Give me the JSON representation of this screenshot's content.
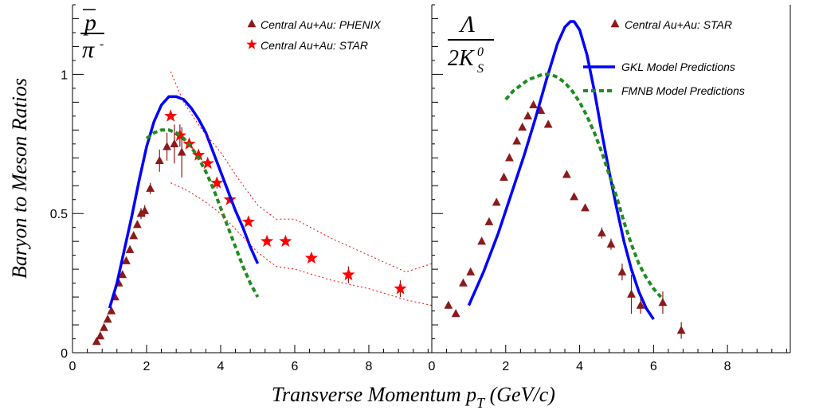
{
  "chart_data": {
    "type": "scatter",
    "xlabel": "Transverse Momentum p_T (GeV/c)",
    "xlabel_main": "Transverse Momentum p",
    "xlabel_sub": "T",
    "xlabel_unit": "(GeV/c)",
    "ylabel": "Baryon to Meson Ratios",
    "colors": {
      "exp": "#8b1a1a",
      "star_marker": "#ff0000",
      "gkl": "#0000ff",
      "fmnb": "#228b22",
      "band": "#ff0000"
    },
    "panels": [
      {
        "id": "left",
        "ratio_label": {
          "numerator": "p",
          "denominator": "π"
        },
        "xlim": [
          0,
          9.7
        ],
        "ylim": [
          0,
          1.25
        ],
        "xticks": [
          "0",
          "2",
          "4",
          "6",
          "8"
        ],
        "yticks": [
          "0",
          "0.5",
          "1"
        ],
        "series": [
          {
            "name": "Central Au+Au: PHENIX",
            "marker": "triangle",
            "x": [
              0.65,
              0.75,
              0.85,
              0.95,
              1.05,
              1.15,
              1.25,
              1.35,
              1.45,
              1.55,
              1.65,
              1.75,
              1.85,
              1.95,
              2.1,
              2.35,
              2.55,
              2.75,
              2.95
            ],
            "y": [
              0.04,
              0.06,
              0.09,
              0.12,
              0.15,
              0.2,
              0.25,
              0.28,
              0.33,
              0.37,
              0.42,
              0.46,
              0.5,
              0.51,
              0.59,
              0.69,
              0.74,
              0.75,
              0.72
            ],
            "err": [
              0,
              0,
              0,
              0,
              0,
              0,
              0,
              0,
              0,
              0,
              0,
              0,
              0.02,
              0.02,
              0.02,
              0.04,
              0.05,
              0.07,
              0.09
            ]
          },
          {
            "name": "Central Au+Au: STAR",
            "marker": "star",
            "x": [
              2.65,
              2.9,
              3.15,
              3.4,
              3.65,
              3.9,
              4.25,
              4.75,
              5.25,
              5.75,
              6.45,
              7.45,
              8.85
            ],
            "y": [
              0.85,
              0.78,
              0.75,
              0.71,
              0.68,
              0.61,
              0.55,
              0.47,
              0.4,
              0.4,
              0.34,
              0.28,
              0.23
            ],
            "err": [
              0,
              0.04,
              0,
              0,
              0,
              0.02,
              0,
              0,
              0,
              0,
              0,
              0.03,
              0.03
            ]
          },
          {
            "name": "GKL Model Predictions",
            "type": "line",
            "style": "solid",
            "x": [
              1.0,
              1.2,
              1.4,
              1.6,
              1.8,
              2.0,
              2.2,
              2.4,
              2.6,
              2.8,
              3.0,
              3.2,
              3.4,
              3.6,
              3.8,
              4.0,
              4.2,
              4.4,
              4.6,
              4.8,
              5.0
            ],
            "y": [
              0.16,
              0.25,
              0.37,
              0.49,
              0.62,
              0.74,
              0.83,
              0.89,
              0.92,
              0.92,
              0.91,
              0.88,
              0.84,
              0.79,
              0.72,
              0.65,
              0.58,
              0.51,
              0.45,
              0.38,
              0.32
            ]
          },
          {
            "name": "FMNB Model Predictions",
            "type": "line",
            "style": "dashed",
            "x": [
              2.0,
              2.2,
              2.4,
              2.6,
              2.8,
              3.0,
              3.2,
              3.4,
              3.6,
              3.8,
              4.0,
              4.2,
              4.4,
              4.6,
              4.8,
              5.0
            ],
            "y": [
              0.77,
              0.79,
              0.8,
              0.8,
              0.79,
              0.77,
              0.74,
              0.7,
              0.65,
              0.59,
              0.52,
              0.45,
              0.38,
              0.31,
              0.25,
              0.2
            ]
          },
          {
            "name": "band upper",
            "type": "line",
            "style": "dotted",
            "x": [
              2.65,
              3.0,
              3.5,
              4.0,
              4.5,
              5.0,
              5.5,
              6.0,
              7.0,
              8.0,
              9.0,
              9.7
            ],
            "y": [
              1.01,
              0.9,
              0.8,
              0.72,
              0.62,
              0.53,
              0.48,
              0.48,
              0.41,
              0.35,
              0.29,
              0.32
            ]
          },
          {
            "name": "band lower",
            "type": "line",
            "style": "dotted",
            "x": [
              2.65,
              3.0,
              3.5,
              4.0,
              4.5,
              5.0,
              5.5,
              6.0,
              7.0,
              8.0,
              9.0,
              9.7
            ],
            "y": [
              0.61,
              0.59,
              0.55,
              0.5,
              0.43,
              0.36,
              0.31,
              0.3,
              0.26,
              0.23,
              0.19,
              0.17
            ]
          }
        ],
        "legend": [
          {
            "marker": "triangle",
            "label": "Central Au+Au: PHENIX"
          },
          {
            "marker": "star",
            "label": "Central Au+Au: STAR"
          }
        ]
      },
      {
        "id": "right",
        "ratio_label": {
          "numerator": "Λ",
          "denominator": "2K",
          "den_sub": "S",
          "den_sup": "0"
        },
        "xlim": [
          0,
          9.7
        ],
        "ylim": [
          0,
          1.25
        ],
        "xticks": [
          "0",
          "2",
          "4",
          "6",
          "8"
        ],
        "series": [
          {
            "name": "Central Au+Au: STAR",
            "marker": "triangle",
            "x": [
              0.45,
              0.65,
              0.85,
              1.05,
              1.35,
              1.55,
              1.75,
              1.95,
              2.1,
              2.3,
              2.45,
              2.6,
              2.75,
              2.95,
              3.15,
              3.65,
              3.85,
              4.15,
              4.6,
              4.85,
              5.15,
              5.4,
              5.65,
              6.25,
              6.75
            ],
            "y": [
              0.17,
              0.14,
              0.25,
              0.29,
              0.4,
              0.47,
              0.54,
              0.63,
              0.7,
              0.76,
              0.81,
              0.85,
              0.89,
              0.87,
              0.82,
              0.64,
              0.56,
              0.52,
              0.43,
              0.39,
              0.29,
              0.21,
              0.17,
              0.18,
              0.08
            ],
            "err": [
              0,
              0,
              0,
              0,
              0,
              0,
              0,
              0,
              0,
              0,
              0,
              0,
              0,
              0,
              0,
              0,
              0,
              0,
              0.02,
              0.02,
              0.03,
              0.07,
              0.03,
              0.04,
              0.03
            ]
          },
          {
            "name": "GKL Model Predictions",
            "type": "line",
            "style": "solid",
            "x": [
              1.0,
              1.4,
              1.8,
              2.2,
              2.5,
              2.8,
              3.1,
              3.4,
              3.6,
              3.75,
              3.85,
              4.0,
              4.2,
              4.4,
              4.6,
              4.8,
              5.0,
              5.2,
              5.4,
              5.6,
              5.8,
              6.0
            ],
            "y": [
              0.17,
              0.29,
              0.43,
              0.59,
              0.71,
              0.84,
              0.98,
              1.11,
              1.17,
              1.19,
              1.19,
              1.16,
              1.07,
              0.94,
              0.79,
              0.65,
              0.52,
              0.4,
              0.3,
              0.22,
              0.16,
              0.12
            ]
          },
          {
            "name": "FMNB Model Predictions",
            "type": "line",
            "style": "dashed",
            "x": [
              2.0,
              2.2,
              2.4,
              2.6,
              2.8,
              3.0,
              3.2,
              3.4,
              3.6,
              3.8,
              4.0,
              4.2,
              4.4,
              4.6,
              4.8,
              5.0,
              5.2,
              5.4,
              5.6,
              5.8,
              6.0,
              6.2
            ],
            "y": [
              0.91,
              0.94,
              0.96,
              0.98,
              0.99,
              1.0,
              1.0,
              0.99,
              0.97,
              0.94,
              0.9,
              0.85,
              0.79,
              0.72,
              0.64,
              0.56,
              0.47,
              0.39,
              0.32,
              0.27,
              0.23,
              0.2
            ]
          }
        ],
        "legend": [
          {
            "marker": "triangle",
            "label": "Central Au+Au: STAR"
          },
          {
            "marker": "solid",
            "label": "GKL Model Predictions"
          },
          {
            "marker": "dashed",
            "label": "FMNB Model Predictions"
          }
        ]
      }
    ]
  }
}
